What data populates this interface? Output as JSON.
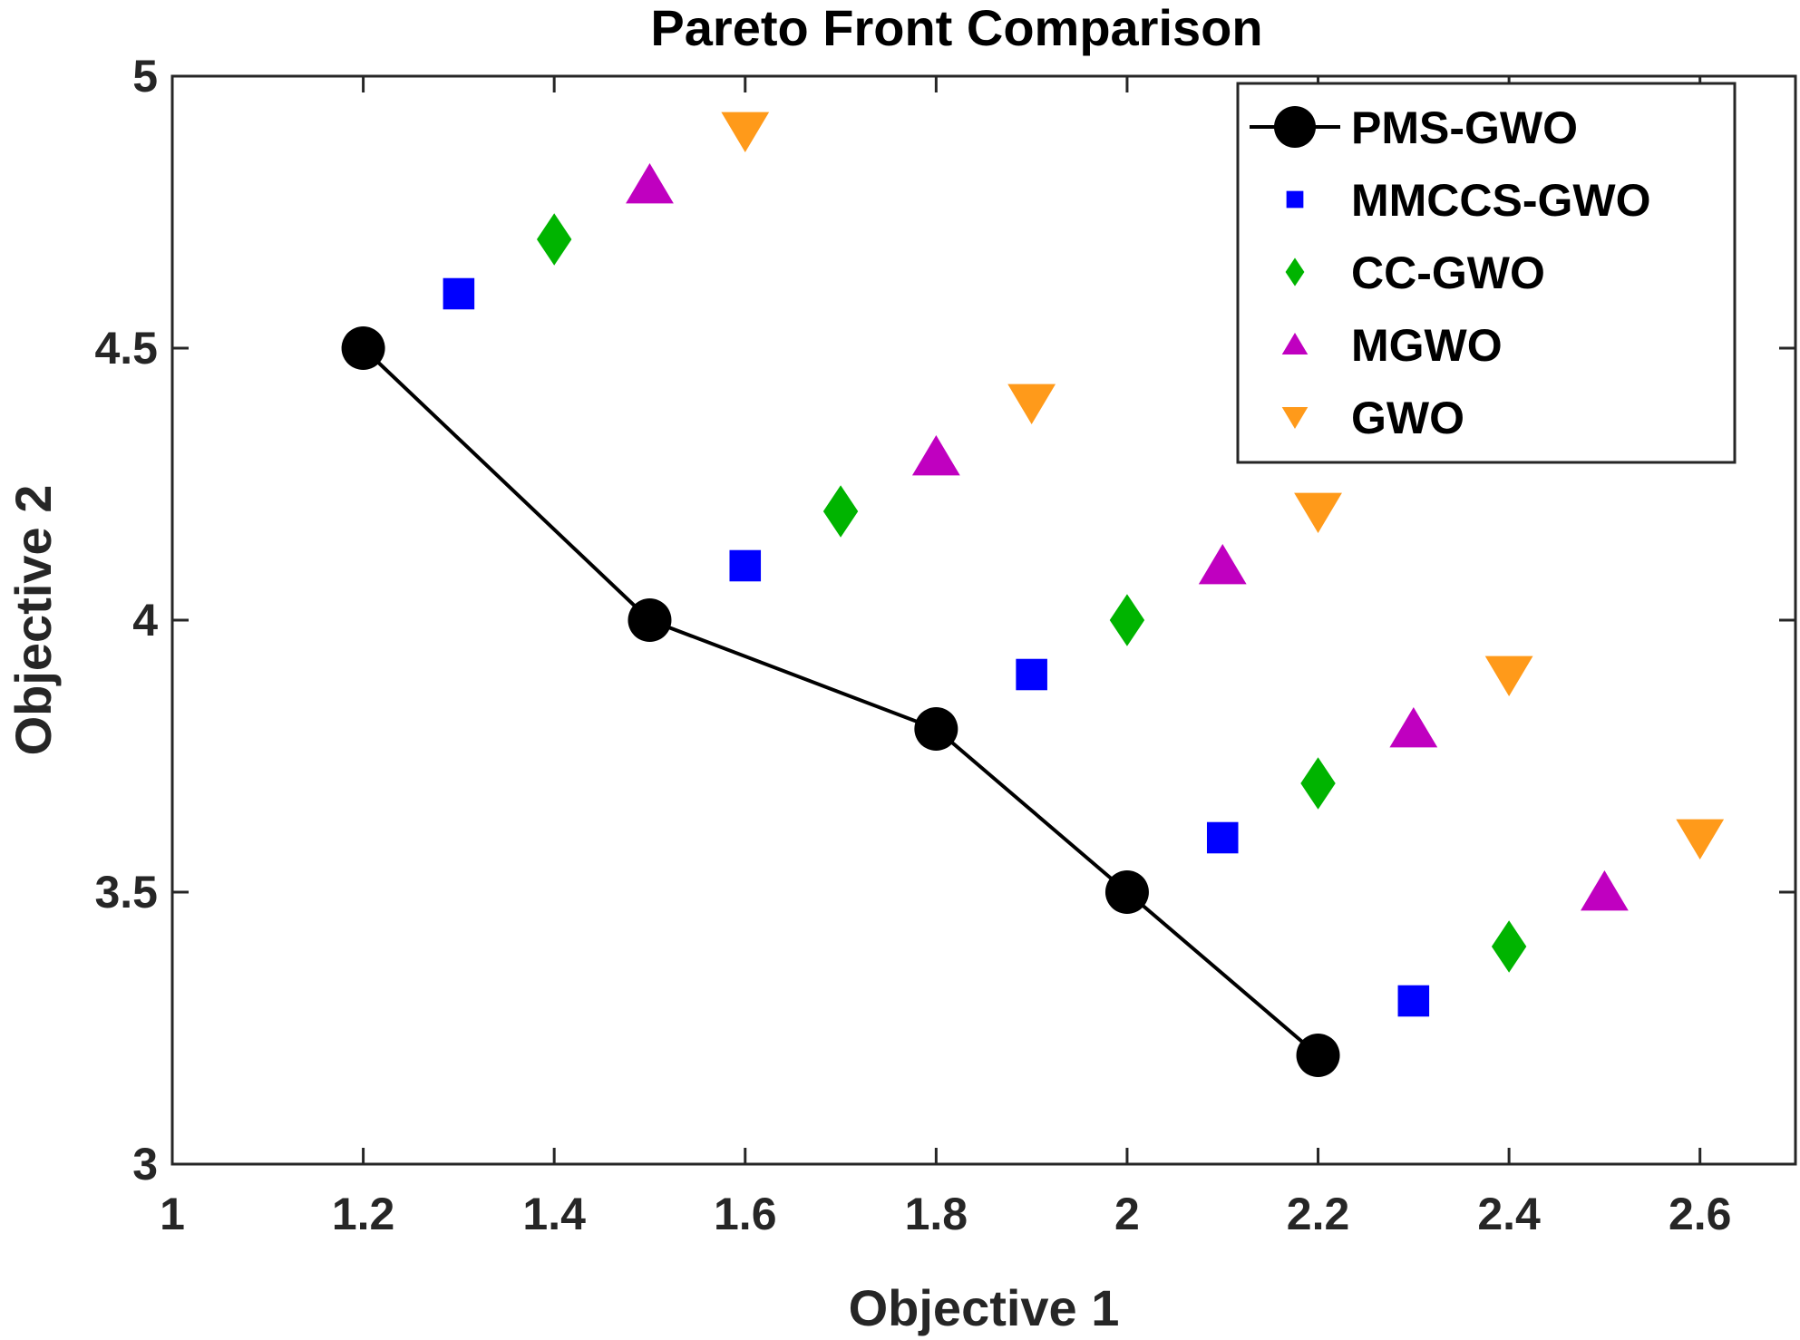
{
  "chart_data": {
    "type": "scatter",
    "title": "Pareto Front Comparison",
    "xlabel": "Objective 1",
    "ylabel": "Objective 2",
    "xlim": [
      1,
      2.7
    ],
    "ylim": [
      3,
      5
    ],
    "xticks": [
      "1",
      "1.2",
      "1.4",
      "1.6",
      "1.8",
      "2",
      "2.2",
      "2.4",
      "2.6"
    ],
    "yticks": [
      "3",
      "3.5",
      "4",
      "4.5",
      "5"
    ],
    "grid": false,
    "legend_position": "top-right",
    "series": [
      {
        "name": "PMS-GWO",
        "marker": "circle",
        "line": true,
        "color": "#000000",
        "x": [
          1.2,
          1.5,
          1.8,
          2.0,
          2.2
        ],
        "y": [
          4.5,
          4.0,
          3.8,
          3.5,
          3.2
        ]
      },
      {
        "name": "MMCCS-GWO",
        "marker": "square",
        "line": false,
        "color": "#0000ff",
        "x": [
          1.3,
          1.6,
          1.9,
          2.1,
          2.3
        ],
        "y": [
          4.6,
          4.1,
          3.9,
          3.6,
          3.3
        ]
      },
      {
        "name": "CC-GWO",
        "marker": "diamond",
        "line": false,
        "color": "#00b400",
        "x": [
          1.4,
          1.7,
          2.0,
          2.2,
          2.4
        ],
        "y": [
          4.7,
          4.2,
          4.0,
          3.7,
          3.4
        ]
      },
      {
        "name": "MGWO",
        "marker": "triangle-up",
        "line": false,
        "color": "#c000c0",
        "x": [
          1.5,
          1.8,
          2.1,
          2.3,
          2.5
        ],
        "y": [
          4.8,
          4.3,
          4.1,
          3.8,
          3.5
        ]
      },
      {
        "name": "GWO",
        "marker": "triangle-down",
        "line": false,
        "color": "#ff9a1a",
        "x": [
          1.6,
          1.9,
          2.2,
          2.4,
          2.6
        ],
        "y": [
          4.9,
          4.4,
          4.2,
          3.9,
          3.6
        ]
      }
    ]
  }
}
